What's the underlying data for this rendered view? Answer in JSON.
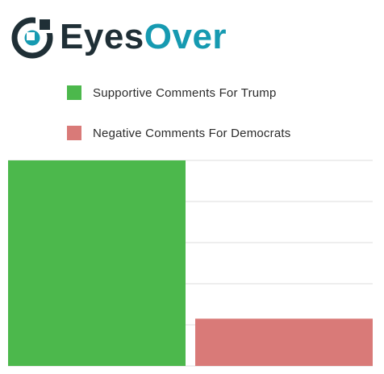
{
  "brand": {
    "name_part1": "Eyes",
    "name_part2": "Over",
    "dark_color": "#1f2f36",
    "accent_color": "#169ab1",
    "logo_icon": "eye-target-icon"
  },
  "chart_data": {
    "type": "bar",
    "title": "",
    "xlabel": "",
    "ylabel": "",
    "categories": [
      "Supportive Comments For Trump",
      "Negative Comments For Democrats"
    ],
    "values": [
      100,
      23
    ],
    "ylim": [
      0,
      100
    ],
    "grid": true,
    "legend": "top",
    "colors": [
      "#4cb84c",
      "#d97a78"
    ]
  }
}
